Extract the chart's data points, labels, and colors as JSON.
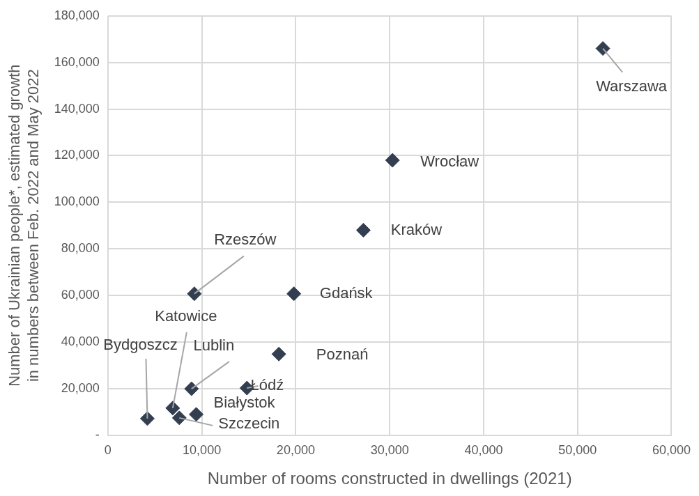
{
  "chart_data": {
    "type": "scatter",
    "xlabel": "Number of rooms constructed in dwellings (2021)",
    "ylabel": "Number of Ukrainian people*, estimated growth in numbers between Feb. 2022 and May 2022",
    "x": [
      52700,
      30300,
      27200,
      19800,
      9200,
      18200,
      14800,
      8900,
      6900,
      4200,
      9400,
      7600
    ],
    "series": [
      {
        "color": "#333f50",
        "values": [
          166000,
          118000,
          88000,
          60700,
          60700,
          34800,
          20200,
          19900,
          11600,
          7100,
          8900,
          7400
        ]
      }
    ],
    "marker": "diamond",
    "grid": true,
    "legend": false,
    "xlim": [
      0,
      60000
    ],
    "xticks": [
      0,
      {
        "value": 10000,
        "label": "10,000"
      },
      {
        "value": 20000,
        "label": "20,000"
      },
      {
        "value": 30000,
        "label": "30,000"
      },
      {
        "value": 40000,
        "label": "40,000"
      },
      {
        "value": 50000,
        "label": "50,000"
      },
      {
        "value": 60000,
        "label": "60,000"
      }
    ],
    "ylim": [
      0,
      180000
    ],
    "yticks": [
      {
        "value": 0,
        "label": "-"
      },
      {
        "value": 20000,
        "label": "20,000"
      },
      {
        "value": 40000,
        "label": "40,000"
      },
      {
        "value": 60000,
        "label": "60,000"
      },
      {
        "value": 80000,
        "label": "80,000"
      },
      {
        "value": 100000,
        "label": "100,000"
      },
      {
        "value": 120000,
        "label": "120,000"
      },
      {
        "value": 140000,
        "label": "140,000"
      },
      {
        "value": 160000,
        "label": "160,000"
      },
      {
        "value": 180000,
        "label": "180,000"
      }
    ],
    "annotations": [
      {
        "text": "Warszawa",
        "x": 52700,
        "y": 166000
      },
      {
        "text": "Wrocław",
        "x": 30300,
        "y": 118000
      },
      {
        "text": "Kraków",
        "x": 27200,
        "y": 88000
      },
      {
        "text": "Gdańsk",
        "x": 19800,
        "y": 60700
      },
      {
        "text": "Rzeszów",
        "x": 9200,
        "y": 60700
      },
      {
        "text": "Poznań",
        "x": 18200,
        "y": 34800
      },
      {
        "text": "Łódź",
        "x": 14800,
        "y": 20200
      },
      {
        "text": "Lublin",
        "x": 8900,
        "y": 19900
      },
      {
        "text": "Katowice",
        "x": 6900,
        "y": 11600
      },
      {
        "text": "Bydgoszcz",
        "x": 4200,
        "y": 7100
      },
      {
        "text": "Białystok",
        "x": 9400,
        "y": 8900
      },
      {
        "text": "Szczecin",
        "x": 7600,
        "y": 7400
      }
    ]
  }
}
